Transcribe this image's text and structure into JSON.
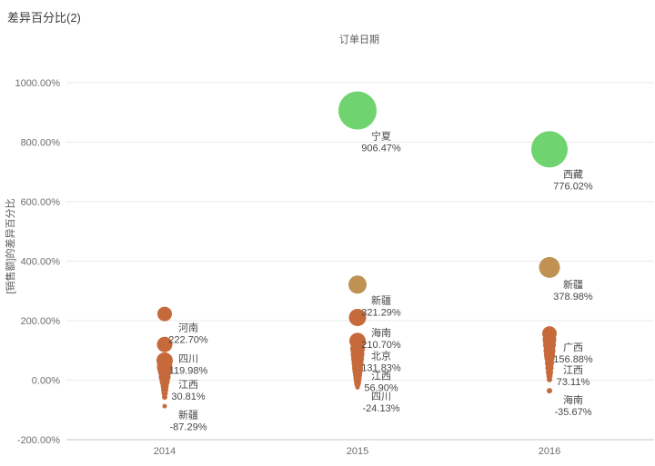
{
  "chart_data": {
    "type": "scatter",
    "title": "差异百分比(2)",
    "xlabel": "订单日期",
    "ylabel": "[销售额]的差异百分比",
    "ylim": [
      -200,
      1000
    ],
    "grid": "horizontal",
    "legend": "none",
    "colors": {
      "green": "#6fd36f",
      "tan": "#bf9254",
      "orange": "#c66a3c"
    },
    "y_ticks": [
      {
        "label": "1000.00%",
        "value": 1000
      },
      {
        "label": "800.00%",
        "value": 800
      },
      {
        "label": "600.00%",
        "value": 600
      },
      {
        "label": "400.00%",
        "value": 400
      },
      {
        "label": "200.00%",
        "value": 200
      },
      {
        "label": "0.00%",
        "value": 0
      },
      {
        "label": "-200.00%",
        "value": -200
      }
    ],
    "x_categories": [
      "2014",
      "2015",
      "2016"
    ],
    "groups": [
      {
        "category": "2014",
        "points": [
          {
            "province": "河南",
            "value": 222.7,
            "display": "222.70%",
            "r": 8,
            "color": "orange",
            "labeled": true
          },
          {
            "province": "四川",
            "value": 119.98,
            "display": "119.98%",
            "r": 8.5,
            "color": "orange",
            "labeled": true
          },
          {
            "province": "江西",
            "value": 30.81,
            "display": "30.81%",
            "r": 7.5,
            "color": "orange",
            "labeled": true
          },
          {
            "province": "新疆",
            "value": -87.29,
            "display": "-87.29%",
            "r": 2.5,
            "color": "orange",
            "labeled": true
          }
        ],
        "unlabeled_estimated": [
          {
            "value": 66,
            "r": 9
          },
          {
            "value": 44,
            "r": 8.5
          },
          {
            "value": 11,
            "r": 6.5
          },
          {
            "value": -5,
            "r": 5.5
          },
          {
            "value": -20,
            "r": 4.5
          },
          {
            "value": -32,
            "r": 4
          },
          {
            "value": -44,
            "r": 3.5
          },
          {
            "value": -57,
            "r": 3
          }
        ]
      },
      {
        "category": "2015",
        "points": [
          {
            "province": "宁夏",
            "value": 906.47,
            "display": "906.47%",
            "r": 21,
            "color": "green",
            "labeled": true
          },
          {
            "province": "新疆",
            "value": 321.29,
            "display": "321.29%",
            "r": 10,
            "color": "tan",
            "labeled": true
          },
          {
            "province": "海南",
            "value": 210.7,
            "display": "210.70%",
            "r": 9.5,
            "color": "orange",
            "labeled": true
          },
          {
            "province": "北京",
            "value": 131.83,
            "display": "131.83%",
            "r": 9,
            "color": "orange",
            "labeled": true
          },
          {
            "province": "江西",
            "value": 56.9,
            "display": "56.90%",
            "r": 6.5,
            "color": "orange",
            "labeled": true
          },
          {
            "province": "四川",
            "value": -24.13,
            "display": "-24.13%",
            "r": 2.5,
            "color": "orange",
            "labeled": true
          }
        ],
        "unlabeled_estimated": [
          {
            "value": 105,
            "r": 8
          },
          {
            "value": 87,
            "r": 7.5
          },
          {
            "value": 72,
            "r": 7
          },
          {
            "value": 41,
            "r": 6
          },
          {
            "value": 29,
            "r": 5.5
          },
          {
            "value": 17,
            "r": 5
          },
          {
            "value": 5,
            "r": 4.5
          },
          {
            "value": -5,
            "r": 4
          },
          {
            "value": -14,
            "r": 3.5
          }
        ]
      },
      {
        "category": "2016",
        "points": [
          {
            "province": "西藏",
            "value": 776.02,
            "display": "776.02%",
            "r": 20,
            "color": "green",
            "labeled": true
          },
          {
            "province": "新疆",
            "value": 378.98,
            "display": "378.98%",
            "r": 11.5,
            "color": "tan",
            "labeled": true
          },
          {
            "province": "广西",
            "value": 156.88,
            "display": "156.88%",
            "r": 8,
            "color": "orange",
            "labeled": true
          },
          {
            "province": "江西",
            "value": 73.11,
            "display": "73.11%",
            "r": 5.5,
            "color": "orange",
            "labeled": true
          },
          {
            "province": "海南",
            "value": -35.67,
            "display": "-35.67%",
            "r": 3,
            "color": "orange",
            "labeled": true
          }
        ],
        "unlabeled_estimated": [
          {
            "value": 136,
            "r": 7.5
          },
          {
            "value": 118,
            "r": 7
          },
          {
            "value": 99,
            "r": 6.5
          },
          {
            "value": 84,
            "r": 6
          },
          {
            "value": 57,
            "r": 5
          },
          {
            "value": 41,
            "r": 4.5
          },
          {
            "value": 26,
            "r": 4
          },
          {
            "value": 14,
            "r": 3.5
          },
          {
            "value": 2,
            "r": 3
          }
        ]
      }
    ]
  }
}
